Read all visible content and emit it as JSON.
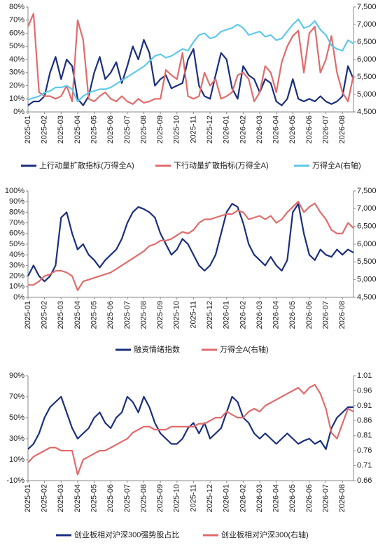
{
  "chart_data": [
    {
      "type": "line",
      "categories": [
        "2025-01",
        null,
        null,
        "2025-02",
        null,
        null,
        "2025-03",
        null,
        null,
        "2025-04",
        null,
        null,
        "2025-05",
        null,
        null,
        "2025-06",
        null,
        null,
        "2025-07",
        null,
        null,
        "2025-08",
        null,
        null,
        "2025-09",
        null,
        null,
        "2025-10",
        null,
        null,
        "2025-11",
        null,
        null,
        "2025-12",
        null,
        null,
        "2026-01",
        null,
        null,
        "2026-02",
        null,
        null,
        "2026-03",
        null,
        null,
        "2026-04",
        null,
        null,
        "2026-05",
        null,
        null,
        "2026-06",
        null,
        null,
        "2026-07",
        null,
        null,
        "2026-08",
        null,
        null
      ],
      "series": [
        {
          "name": "上行动量扩散指标(万得全A)",
          "color": "#1b2f7e",
          "values": [
            5,
            8,
            8,
            12,
            30,
            42,
            25,
            40,
            35,
            10,
            5,
            12,
            30,
            42,
            25,
            30,
            38,
            22,
            35,
            50,
            40,
            55,
            45,
            20,
            25,
            28,
            18,
            20,
            22,
            40,
            48,
            20,
            12,
            10,
            28,
            45,
            40,
            18,
            10,
            35,
            28,
            25,
            15,
            25,
            22,
            8,
            5,
            10,
            25,
            10,
            8,
            10,
            8,
            12,
            8,
            6,
            8,
            12,
            35,
            25
          ]
        },
        {
          "name": "下行动量扩散指标(万得全A)",
          "color": "#e06c6c",
          "values": [
            65,
            75,
            15,
            12,
            12,
            10,
            12,
            20,
            8,
            70,
            55,
            10,
            8,
            12,
            15,
            10,
            8,
            12,
            8,
            6,
            10,
            7,
            8,
            10,
            10,
            32,
            28,
            25,
            45,
            12,
            10,
            12,
            30,
            20,
            25,
            10,
            12,
            15,
            28,
            30,
            25,
            8,
            15,
            35,
            30,
            15,
            38,
            50,
            58,
            62,
            30,
            60,
            65,
            30,
            40,
            58,
            30,
            15,
            8,
            28
          ]
        },
        {
          "name": "万得全A(右轴)",
          "color": "#5cc8ea",
          "axis": "y2",
          "values": [
            4850,
            4900,
            4950,
            5050,
            5100,
            5200,
            5200,
            5250,
            5150,
            4800,
            4950,
            5050,
            5100,
            5150,
            5150,
            5200,
            5300,
            5400,
            5500,
            5600,
            5700,
            5800,
            5950,
            6100,
            6150,
            6050,
            6100,
            6200,
            6300,
            6250,
            6500,
            6700,
            6750,
            6600,
            6650,
            6800,
            6850,
            6900,
            7000,
            6900,
            6700,
            6750,
            6800,
            6650,
            6700,
            6550,
            6600,
            6800,
            7000,
            7150,
            6900,
            6950,
            7100,
            6850,
            6700,
            6400,
            6300,
            6250,
            6550,
            6450
          ]
        }
      ],
      "ylim": [
        0,
        80
      ],
      "yticks": [
        {
          "value": 0,
          "label": "0%"
        },
        {
          "value": 10,
          "label": "10%"
        },
        {
          "value": 20,
          "label": "20%"
        },
        {
          "value": 30,
          "label": "30%"
        },
        {
          "value": 40,
          "label": "40%"
        },
        {
          "value": 50,
          "label": "50%"
        },
        {
          "value": 60,
          "label": "60%"
        },
        {
          "value": 70,
          "label": "70%"
        },
        {
          "value": 80,
          "label": "80%"
        }
      ],
      "y2lim": [
        4500,
        7500
      ],
      "y2ticks": [
        {
          "value": 4500,
          "label": "4,500"
        },
        {
          "value": 5000,
          "label": "5,000"
        },
        {
          "value": 5500,
          "label": "5,500"
        },
        {
          "value": 6000,
          "label": "6,000"
        },
        {
          "value": 6500,
          "label": "6,500"
        },
        {
          "value": 7000,
          "label": "7,000"
        },
        {
          "value": 7500,
          "label": "7,500"
        }
      ]
    },
    {
      "type": "line",
      "categories": [
        "2025-01",
        null,
        null,
        "2025-02",
        null,
        null,
        "2025-03",
        null,
        null,
        "2025-04",
        null,
        null,
        "2025-05",
        null,
        null,
        "2025-06",
        null,
        null,
        "2025-07",
        null,
        null,
        "2025-08",
        null,
        null,
        "2025-09",
        null,
        null,
        "2025-10",
        null,
        null,
        "2025-11",
        null,
        null,
        "2025-12",
        null,
        null,
        "2026-01",
        null,
        null,
        "2026-02",
        null,
        null,
        "2026-03",
        null,
        null,
        "2026-04",
        null,
        null,
        "2026-05",
        null,
        null,
        "2026-06",
        null,
        null,
        "2026-07",
        null,
        null,
        "2026-08",
        null,
        null
      ],
      "series": [
        {
          "name": "融资情绪指数",
          "color": "#1b2f7e",
          "values": [
            20,
            30,
            20,
            15,
            20,
            30,
            75,
            80,
            60,
            45,
            50,
            40,
            35,
            28,
            35,
            40,
            45,
            55,
            70,
            80,
            85,
            83,
            80,
            75,
            60,
            50,
            40,
            45,
            55,
            50,
            40,
            30,
            25,
            30,
            40,
            60,
            80,
            88,
            85,
            70,
            50,
            40,
            35,
            30,
            38,
            30,
            25,
            35,
            80,
            88,
            60,
            40,
            35,
            45,
            40,
            38,
            45,
            40,
            45,
            42
          ]
        },
        {
          "name": "万得全A(右轴)",
          "color": "#e06c6c",
          "axis": "y2",
          "values": [
            4850,
            4850,
            4950,
            5100,
            5150,
            5250,
            5250,
            5200,
            5100,
            4700,
            4950,
            5000,
            5050,
            5100,
            5150,
            5200,
            5300,
            5400,
            5500,
            5600,
            5700,
            5800,
            5950,
            6000,
            6100,
            6100,
            6150,
            6250,
            6350,
            6300,
            6400,
            6600,
            6700,
            6700,
            6750,
            6800,
            6850,
            6850,
            6950,
            6900,
            6700,
            6750,
            6800,
            6700,
            6800,
            6600,
            6700,
            6900,
            7050,
            7200,
            6900,
            7050,
            7150,
            6900,
            6700,
            6400,
            6300,
            6300,
            6600,
            6450
          ]
        }
      ],
      "ylim": [
        0,
        100
      ],
      "yticks": [
        {
          "value": 0,
          "label": "0%"
        },
        {
          "value": 10,
          "label": "10%"
        },
        {
          "value": 20,
          "label": "20%"
        },
        {
          "value": 30,
          "label": "30%"
        },
        {
          "value": 40,
          "label": "40%"
        },
        {
          "value": 50,
          "label": "50%"
        },
        {
          "value": 60,
          "label": "60%"
        },
        {
          "value": 70,
          "label": "70%"
        },
        {
          "value": 80,
          "label": "80%"
        },
        {
          "value": 90,
          "label": "90%"
        },
        {
          "value": 100,
          "label": "100%"
        }
      ],
      "y2lim": [
        4500,
        7500
      ],
      "y2ticks": [
        {
          "value": 4500,
          "label": "4,500"
        },
        {
          "value": 5000,
          "label": "5,000"
        },
        {
          "value": 5500,
          "label": "5,500"
        },
        {
          "value": 6000,
          "label": "6,000"
        },
        {
          "value": 6500,
          "label": "6,500"
        },
        {
          "value": 7000,
          "label": "7,000"
        },
        {
          "value": 7500,
          "label": "7,500"
        }
      ]
    },
    {
      "type": "line",
      "categories": [
        "2025-01",
        null,
        null,
        "2025-02",
        null,
        null,
        "2025-03",
        null,
        null,
        "2025-04",
        null,
        null,
        "2025-05",
        null,
        null,
        "2025-06",
        null,
        null,
        "2025-07",
        null,
        null,
        "2025-08",
        null,
        null,
        "2025-09",
        null,
        null,
        "2025-10",
        null,
        null,
        "2025-11",
        null,
        null,
        "2025-12",
        null,
        null,
        "2026-01",
        null,
        null,
        "2026-02",
        null,
        null,
        "2026-03",
        null,
        null,
        "2026-04",
        null,
        null,
        "2026-05",
        null,
        null,
        "2026-06",
        null,
        null,
        "2026-07",
        null,
        null,
        "2026-08",
        null,
        null
      ],
      "series": [
        {
          "name": "创业板相对沪深300强势股占比",
          "color": "#1b2f7e",
          "values": [
            20,
            25,
            35,
            50,
            60,
            65,
            70,
            55,
            40,
            30,
            35,
            40,
            50,
            55,
            45,
            40,
            50,
            55,
            70,
            65,
            55,
            70,
            60,
            45,
            35,
            30,
            25,
            25,
            30,
            40,
            45,
            35,
            45,
            30,
            35,
            40,
            55,
            70,
            65,
            50,
            45,
            35,
            30,
            35,
            30,
            25,
            30,
            35,
            30,
            25,
            28,
            30,
            25,
            28,
            20,
            40,
            50,
            55,
            60,
            60
          ]
        },
        {
          "name": "创业板相对沪深300(右轴)",
          "color": "#e06c6c",
          "axis": "y2",
          "values": [
            0.72,
            0.74,
            0.75,
            0.76,
            0.77,
            0.77,
            0.76,
            0.76,
            0.76,
            0.68,
            0.73,
            0.74,
            0.75,
            0.76,
            0.76,
            0.77,
            0.78,
            0.79,
            0.8,
            0.82,
            0.83,
            0.84,
            0.84,
            0.83,
            0.83,
            0.83,
            0.84,
            0.84,
            0.84,
            0.84,
            0.84,
            0.85,
            0.85,
            0.86,
            0.87,
            0.87,
            0.89,
            0.88,
            0.87,
            0.87,
            0.89,
            0.9,
            0.89,
            0.91,
            0.92,
            0.93,
            0.94,
            0.95,
            0.96,
            0.97,
            0.95,
            0.97,
            0.98,
            0.95,
            0.9,
            0.82,
            0.8,
            0.85,
            0.9,
            0.89
          ]
        }
      ],
      "ylim": [
        -10,
        90
      ],
      "yticks": [
        {
          "value": -10,
          "label": "-10%"
        },
        {
          "value": 10,
          "label": "10%"
        },
        {
          "value": 30,
          "label": "30%"
        },
        {
          "value": 50,
          "label": "50%"
        },
        {
          "value": 70,
          "label": "70%"
        },
        {
          "value": 90,
          "label": "90%"
        }
      ],
      "y2lim": [
        0.66,
        1.01
      ],
      "y2ticks": [
        0.66,
        0.71,
        0.76,
        0.81,
        0.86,
        0.91,
        0.96,
        1.01
      ]
    }
  ]
}
